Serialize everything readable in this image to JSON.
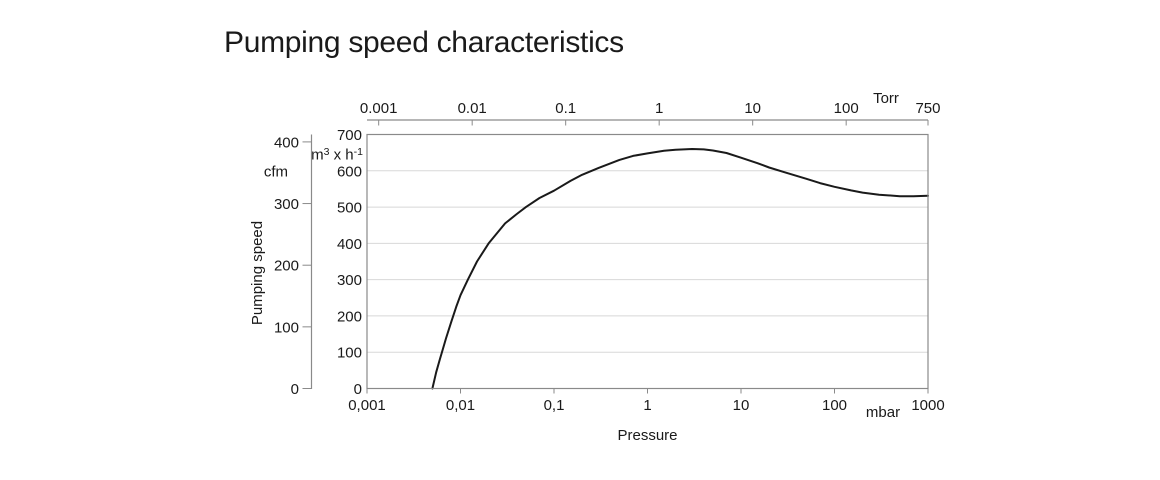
{
  "chart_data": {
    "type": "line",
    "title": "Pumping speed characteristics",
    "x_axis_bottom": {
      "label": "Pressure",
      "unit": "mbar",
      "scale": "log",
      "range": [
        0.001,
        1000
      ],
      "tick_values": [
        0.001,
        0.01,
        0.1,
        1,
        10,
        100,
        1000
      ],
      "tick_labels": [
        "0,001",
        "0,01",
        "0,1",
        "1",
        "10",
        "100",
        "1000"
      ]
    },
    "x_axis_top": {
      "unit": "Torr",
      "scale": "log",
      "tick_values": [
        0.001,
        0.01,
        0.1,
        1,
        10,
        100,
        750
      ],
      "tick_labels": [
        "0.001",
        "0.01",
        "0.1",
        "1",
        "10",
        "100",
        "750"
      ],
      "mbar_per_torr": 1.3332
    },
    "y_axis_inner": {
      "unit_parts": [
        {
          "t": "m"
        },
        {
          "t": "3",
          "sup": true
        },
        {
          "t": " x h"
        },
        {
          "t": "-1",
          "sup": true
        }
      ],
      "range": [
        0,
        700
      ],
      "tick_values": [
        0,
        100,
        200,
        300,
        400,
        500,
        600,
        700
      ],
      "tick_labels": [
        "0",
        "100",
        "200",
        "300",
        "400",
        "500",
        "600",
        "700"
      ]
    },
    "y_axis_outer": {
      "label": "Pumping speed",
      "unit": "cfm",
      "tick_values": [
        0,
        100,
        200,
        300,
        400
      ],
      "tick_labels": [
        "0",
        "100",
        "200",
        "300",
        "400"
      ],
      "m3h_per_cfm": 1.699
    },
    "grid": "horizontal-only",
    "colors": {
      "curve": "#1a1a1a",
      "axis": "#8a8a8a",
      "grid": "#d8d8d8",
      "text": "#1a1a1a",
      "background": "#ffffff"
    },
    "series": [
      {
        "name": "pumping-speed-curve",
        "points_mbar_m3h": [
          [
            0.005,
            0
          ],
          [
            0.0055,
            45
          ],
          [
            0.006,
            80
          ],
          [
            0.0065,
            110
          ],
          [
            0.007,
            138
          ],
          [
            0.008,
            185
          ],
          [
            0.009,
            225
          ],
          [
            0.01,
            257
          ],
          [
            0.012,
            300
          ],
          [
            0.015,
            350
          ],
          [
            0.02,
            400
          ],
          [
            0.03,
            455
          ],
          [
            0.04,
            481
          ],
          [
            0.05,
            500
          ],
          [
            0.07,
            525
          ],
          [
            0.1,
            545
          ],
          [
            0.15,
            572
          ],
          [
            0.2,
            589
          ],
          [
            0.3,
            608
          ],
          [
            0.5,
            630
          ],
          [
            0.7,
            641
          ],
          [
            1,
            648
          ],
          [
            1.5,
            655
          ],
          [
            2,
            658
          ],
          [
            3,
            660
          ],
          [
            4,
            659
          ],
          [
            5,
            656
          ],
          [
            7,
            649
          ],
          [
            10,
            636
          ],
          [
            15,
            621
          ],
          [
            20,
            609
          ],
          [
            30,
            595
          ],
          [
            50,
            578
          ],
          [
            70,
            566
          ],
          [
            100,
            556
          ],
          [
            150,
            546
          ],
          [
            200,
            540
          ],
          [
            300,
            534
          ],
          [
            500,
            530
          ],
          [
            700,
            530
          ],
          [
            1000,
            531
          ]
        ]
      }
    ]
  }
}
